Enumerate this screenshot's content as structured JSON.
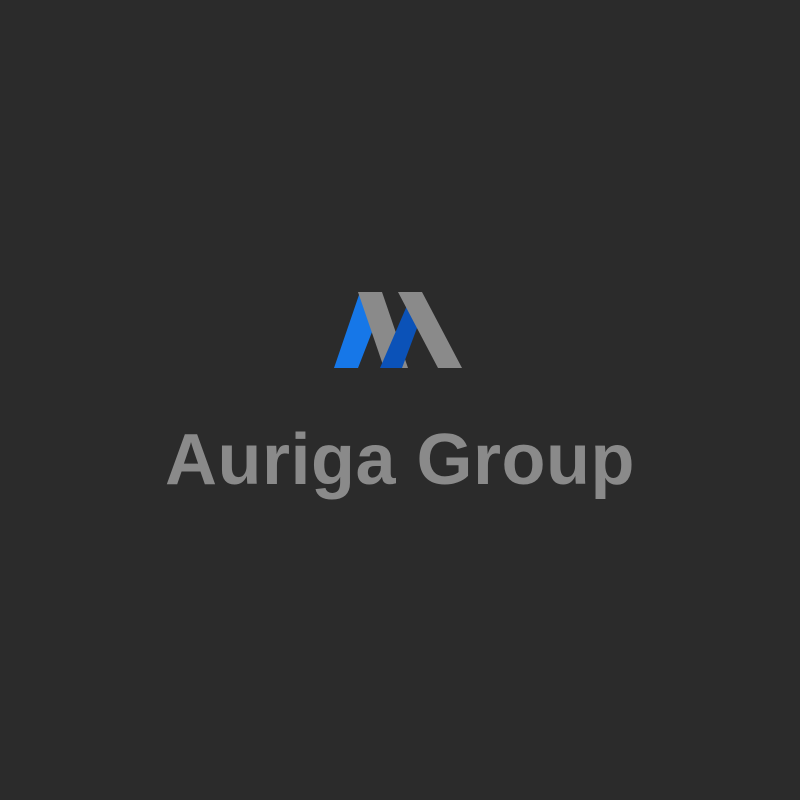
{
  "brand": {
    "name": "Auriga Group",
    "logo_icon": "auriga-m-mark-icon"
  },
  "colors": {
    "background": "#2b2b2b",
    "text": "#8a8a8a",
    "gray_stroke": "#8a8a8a",
    "blue_light": "#1677e8",
    "blue_dark": "#0b52b8"
  }
}
